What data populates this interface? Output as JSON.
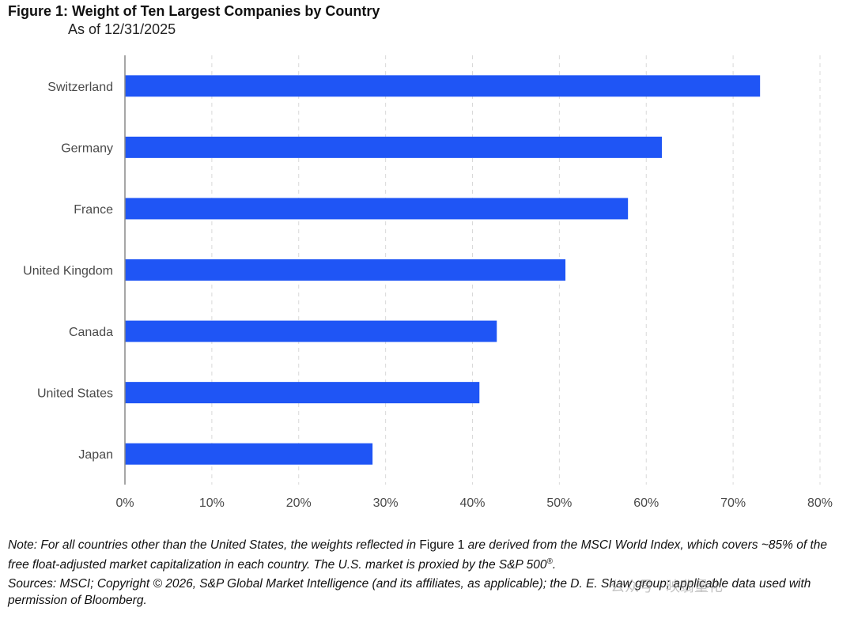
{
  "header": {
    "title": "Figure 1: Weight of Ten Largest Companies by Country",
    "subtitle": "As of 12/31/2025"
  },
  "chart_data": {
    "type": "bar",
    "orientation": "horizontal",
    "title": "Figure 1: Weight of Ten Largest Companies by Country",
    "subtitle": "As of 12/31/2025",
    "categories": [
      "Switzerland",
      "Germany",
      "France",
      "United Kingdom",
      "Canada",
      "United States",
      "Japan"
    ],
    "values": [
      73.1,
      61.8,
      57.9,
      50.7,
      42.8,
      40.8,
      28.5
    ],
    "unit": "%",
    "xlim": [
      0,
      80
    ],
    "xticks": [
      0,
      10,
      20,
      30,
      40,
      50,
      60,
      70,
      80
    ],
    "xtick_labels": [
      "0%",
      "10%",
      "20%",
      "30%",
      "40%",
      "50%",
      "60%",
      "70%",
      "80%"
    ],
    "grid": "vertical dashed",
    "bar_color": "#1f55f5",
    "grid_color": "#d9d9d9",
    "axis_color": "#888888"
  },
  "footer": {
    "note_part1": "Note: For all countries other than the United States, the weights reflected in ",
    "note_ref": "Figure 1",
    "note_part2": " are derived from the MSCI World Index, which covers ~85% of the free float-adjusted market capitalization in each country. The U.S. market is proxied by the S&P 500",
    "note_reg": "®",
    "note_end": ".",
    "sources": "Sources: MSCI; Copyright © 2026, S&P Global Market Intelligence (and its affiliates, as applicable); the D. E. Shaw group; applicable data used with permission of Bloomberg.",
    "watermark": "公众号 · 映翡量化"
  }
}
